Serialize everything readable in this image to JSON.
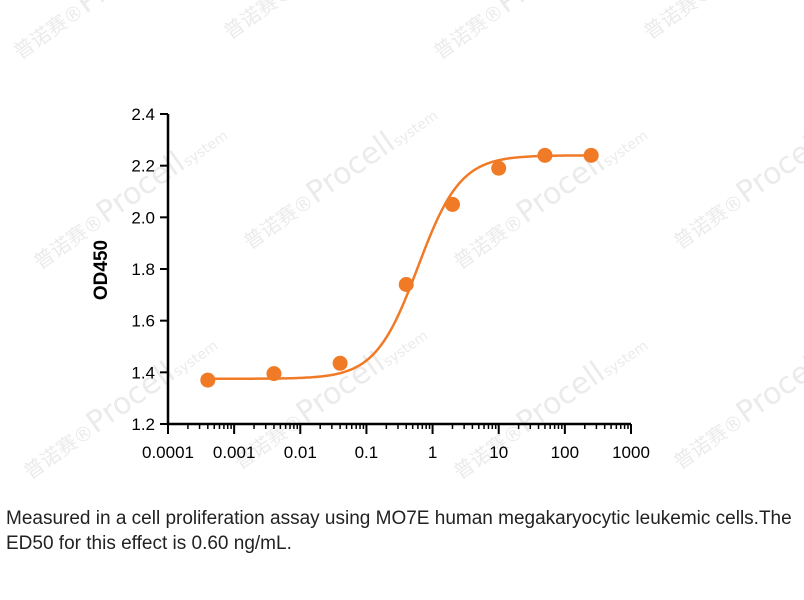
{
  "chart_data": {
    "type": "scatter",
    "title": "",
    "xlabel": "",
    "ylabel": "OD450",
    "xscale": "log",
    "xlim": [
      0.0001,
      1000
    ],
    "ylim": [
      1.2,
      2.4
    ],
    "xticks": [
      "0.0001",
      "0.001",
      "0.01",
      "0.1",
      "1",
      "10",
      "100",
      "1000"
    ],
    "yticks": [
      "1.2",
      "1.4",
      "1.6",
      "1.8",
      "2.0",
      "2.2",
      "2.4"
    ],
    "x": [
      0.0004,
      0.004,
      0.04,
      0.4,
      2,
      10,
      50,
      250
    ],
    "y": [
      1.37,
      1.395,
      1.435,
      1.74,
      2.05,
      2.19,
      2.24,
      2.24
    ],
    "fit": "sigmoidal (4PL) curve",
    "color": "#f07a26",
    "grid": false,
    "legend": "none"
  },
  "caption": "Measured in a cell proliferation assay using MO7E human megakaryocytic leukemic cells.The ED50 for this effect is 0.60 ng/mL.",
  "watermark": {
    "brand": "Procell",
    "sub": "system",
    "cn": "普诺赛",
    "reg": "®"
  }
}
